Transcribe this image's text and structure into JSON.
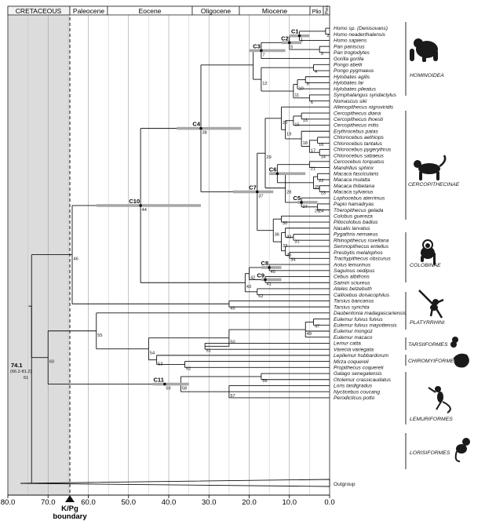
{
  "epochs": {
    "cretaceous": "CRETACEOUS",
    "paleocene": "Paleocene",
    "eocene": "Eocene",
    "oligocene": "Oligocene",
    "miocene": "Miocene",
    "pliocene": "Plio",
    "pleistocene": "Pleis"
  },
  "axis": {
    "ticks": [
      "80.0",
      "70.0",
      "60.0",
      "50.0",
      "40.0",
      "30.0",
      "20.0",
      "10.0",
      "0.0"
    ],
    "x_range": [
      80,
      0
    ],
    "kpg_line1": "K/Pg",
    "kpg_line2": "boundary"
  },
  "root": {
    "age": "74.1",
    "interval": "(66.2-81.2)",
    "node": "61"
  },
  "taxa": [
    "Homo sp. (Denisovans)",
    "Homo neaderthalensis",
    "Homo sapiens",
    "Pan paniscus",
    "Pan troglodytes",
    "Gorilla gorilla",
    "Pongo abelii",
    "Pongo pygmaeus",
    "Hylobates agilis",
    "Hylobates lar",
    "Hylobates pileatus",
    "Symphalangus syndactylus",
    "Nomascus siki",
    "Allenopithecus nigroviridis",
    "Cercopithecus diana",
    "Cercopithecus lhoesti",
    "Cercopithecus mitis",
    "Erythrocebus patas",
    "Chlorocebus aethiops",
    "Chlorocebus tantalus",
    "Chlorocebus pygerythrus",
    "Chlorocebus sabaeus",
    "Cercocebus torquatus",
    "Mandrillus sphinx",
    "Macaca fascicularis",
    "Macaca mulatta",
    "Macaca thibetana",
    "Macaca sylvanus",
    "Lophocebus aterrimus",
    "Papio hamadryas",
    "Theropithecus gelada",
    "Colobus guereza",
    "Piliocolobus badius",
    "Nasalis larvatus",
    "Pygathrix nemaeus",
    "Rhinopithecus roxellana",
    "Semnopithecus entellus",
    "Presbytis melalophos",
    "Trachypithecus obscurus",
    "Aotus lemurinus",
    "Saguinus oedipus",
    "Cebus albifrons",
    "Saimiri sciureus",
    "Ateles belzebuth",
    "Callicebus donacophilus",
    "Tarsius bancanus",
    "Tarsius syrichta",
    "Daubentonia madagascariensis",
    "Eulemur fulvus fulvus",
    "Eulemur fulvus mayottensis",
    "Eulemur mongoz",
    "Eulemur macaco",
    "Lemur catta",
    "Varecia variegata",
    "Lepilemur hubbardorum",
    "Mirza coquereli",
    "Propithecus coquereli",
    "Galago senegalensis",
    "Otolemur crassicaudatus",
    "Loris tardigradus",
    "Nycticebus coucang",
    "Perodicticus potto",
    "Outgroup"
  ],
  "groups": [
    "HOMINOIDEA",
    "CERCOPITHECINAE",
    "COLOBINAE",
    "PLATYRRHINI",
    "TARSIIFORMES",
    "CHIROMYIFORMES",
    "LEMURIFORMES",
    "LORISIFORMES"
  ],
  "calibrations": [
    "C1",
    "C2",
    "C3",
    "C4",
    "C5",
    "C6",
    "C7",
    "C8",
    "C9",
    "C10",
    "C11"
  ],
  "node_numbers": [
    "1",
    "2",
    "3",
    "4",
    "5",
    "6",
    "7",
    "8",
    "9",
    "10",
    "11",
    "12",
    "13",
    "14",
    "15",
    "16",
    "17",
    "18",
    "19",
    "20",
    "21",
    "22",
    "23",
    "24",
    "25",
    "26",
    "27",
    "28",
    "29",
    "30",
    "31",
    "32",
    "33",
    "34",
    "35",
    "36",
    "37",
    "38",
    "40",
    "41",
    "42",
    "43",
    "44",
    "45",
    "46",
    "47",
    "48",
    "49",
    "50",
    "51",
    "52",
    "53",
    "54",
    "55",
    "56",
    "57",
    "58",
    "59",
    "60",
    "61",
    "62"
  ],
  "colors": {
    "cretaceous_shade": "#dcdcdc",
    "interval_bar": "#a8a8a8",
    "branch": "#111111"
  }
}
